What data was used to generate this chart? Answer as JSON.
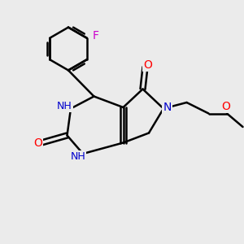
{
  "bg_color": "#ebebeb",
  "atom_colors": {
    "C": "#000000",
    "N": "#0000cd",
    "O": "#ff0000",
    "F": "#cc00cc",
    "H": "#3a8a7a"
  },
  "bond_color": "#000000",
  "figsize": [
    3.0,
    3.0
  ],
  "dpi": 100
}
